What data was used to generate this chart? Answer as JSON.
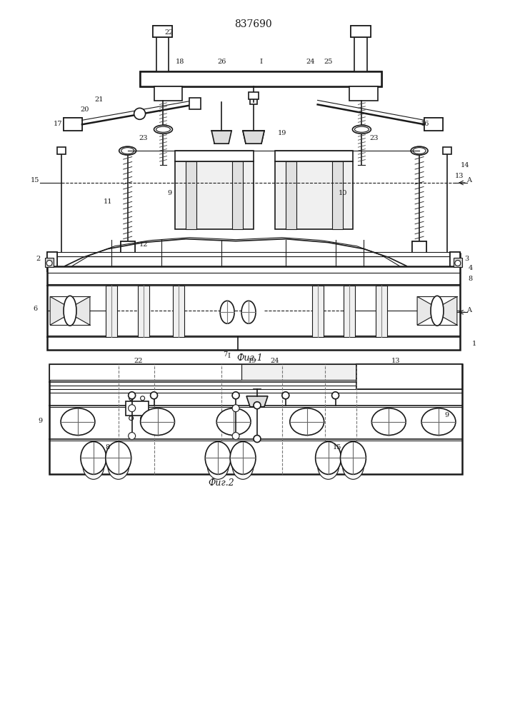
{
  "patent_number": "837690",
  "fig1_caption": "Фиг.1",
  "fig2_caption": "Фиг.2",
  "bg": "#ffffff",
  "lc": "#1a1a1a"
}
